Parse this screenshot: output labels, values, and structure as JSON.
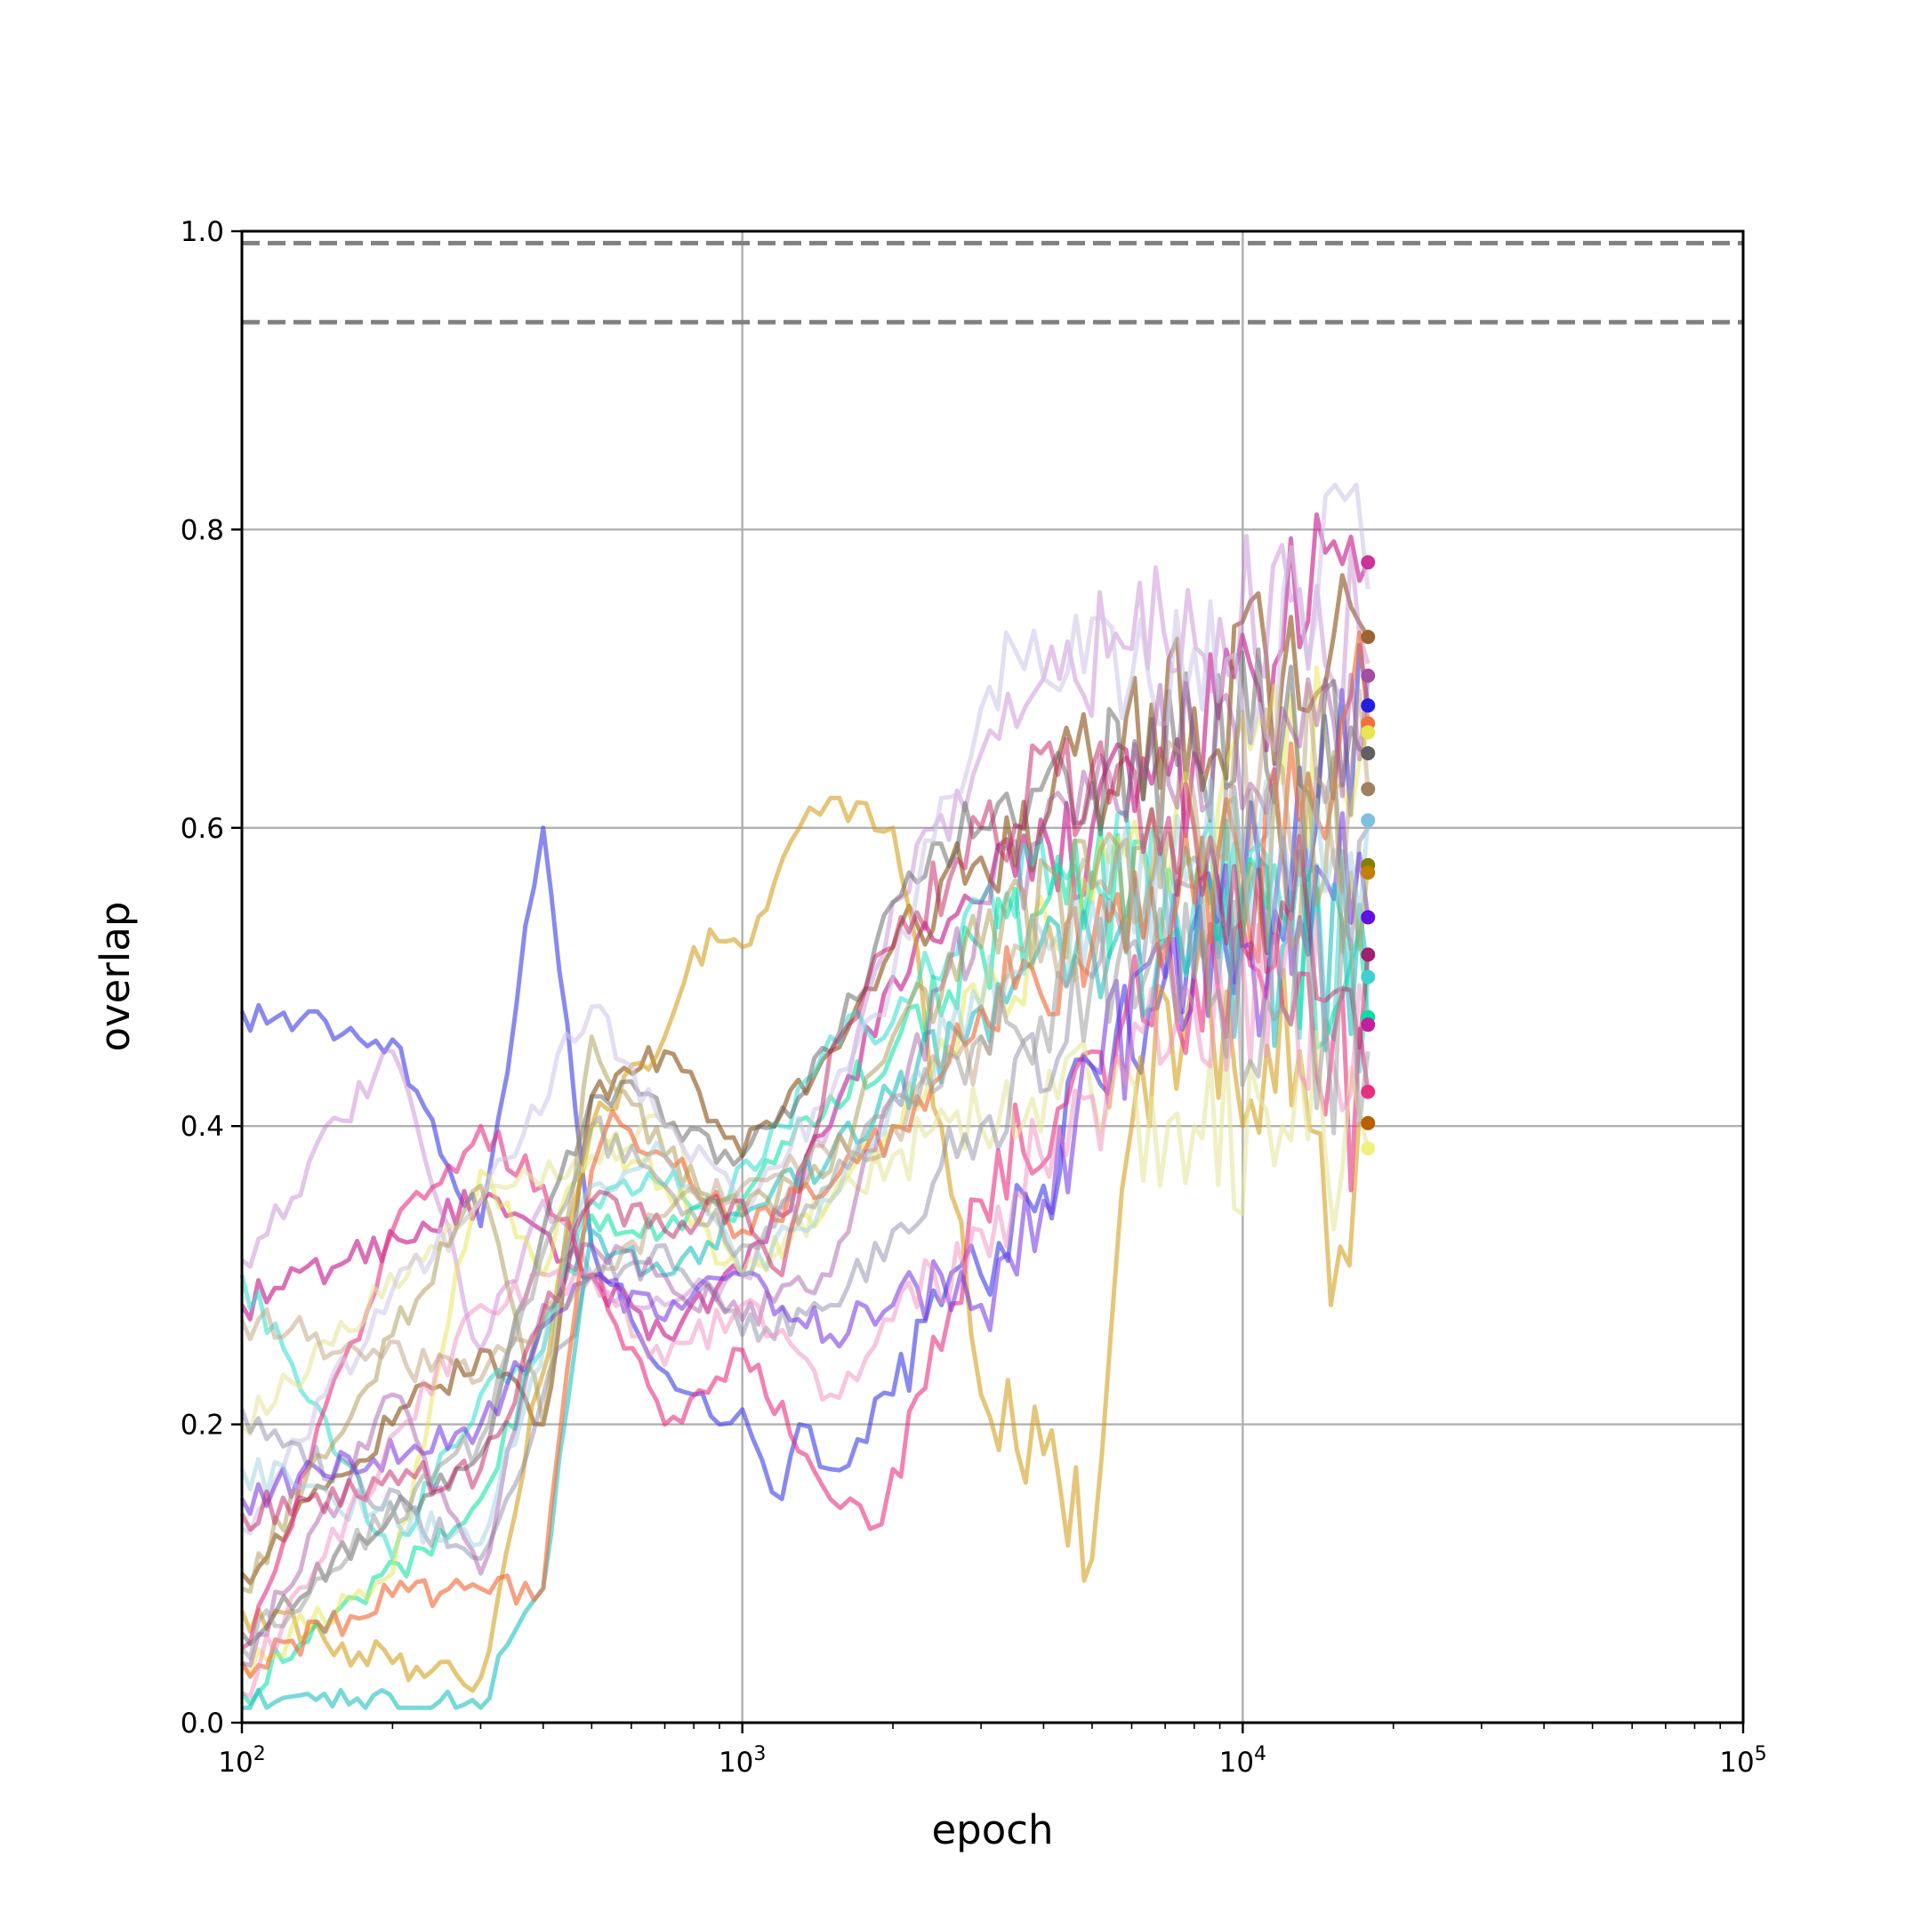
{
  "chart_data": {
    "type": "line",
    "title": "",
    "xlabel": "epoch",
    "ylabel": "overlap",
    "xscale": "log",
    "xlim": [
      100,
      100000
    ],
    "ylim": [
      0.0,
      1.0
    ],
    "grid": true,
    "legend": "none",
    "x_tick_labels": [
      {
        "value": 100,
        "base": "10",
        "exp": "2"
      },
      {
        "value": 1000,
        "base": "10",
        "exp": "3"
      },
      {
        "value": 10000,
        "base": "10",
        "exp": "4"
      },
      {
        "value": 100000,
        "base": "10",
        "exp": "5"
      }
    ],
    "y_tick_labels": [
      {
        "value": 0.0,
        "label": "0.0"
      },
      {
        "value": 0.2,
        "label": "0.2"
      },
      {
        "value": 0.4,
        "label": "0.4"
      },
      {
        "value": 0.6,
        "label": "0.6"
      },
      {
        "value": 0.8,
        "label": "0.8"
      },
      {
        "value": 1.0,
        "label": "1.0"
      }
    ],
    "reference_lines": [
      {
        "y": 0.992,
        "style": "dashed",
        "color": "#808080"
      },
      {
        "y": 0.939,
        "style": "dashed",
        "color": "#808080"
      }
    ],
    "series": [
      {
        "color": "#4a4ae6",
        "alpha": 0.65,
        "x": [
          100,
          200,
          300,
          400,
          500,
          600,
          800,
          900,
          1000,
          1200,
          1300,
          1500,
          1700,
          2000,
          2500,
          3000,
          4000,
          5000,
          7000,
          10000,
          14000,
          17800
        ],
        "y": [
          0.477,
          0.458,
          0.333,
          0.6,
          0.32,
          0.27,
          0.22,
          0.2,
          0.21,
          0.15,
          0.2,
          0.17,
          0.19,
          0.22,
          0.28,
          0.3,
          0.36,
          0.44,
          0.5,
          0.55,
          0.6,
          0.682
        ]
      },
      {
        "color": "#cc3399",
        "alpha": 0.7,
        "x": [
          100,
          300,
          500,
          700,
          1000,
          1500,
          2000,
          3000,
          5000,
          8000,
          12000,
          17800
        ],
        "y": [
          0.28,
          0.35,
          0.3,
          0.26,
          0.3,
          0.4,
          0.5,
          0.55,
          0.6,
          0.65,
          0.72,
          0.778
        ]
      },
      {
        "color": "#996633",
        "alpha": 0.7,
        "x": [
          100,
          200,
          300,
          400,
          500,
          700,
          1000,
          1500,
          2000,
          3000,
          5000,
          8000,
          12000,
          17800
        ],
        "y": [
          0.1,
          0.2,
          0.25,
          0.2,
          0.42,
          0.45,
          0.38,
          0.45,
          0.52,
          0.58,
          0.64,
          0.68,
          0.7,
          0.728
        ]
      },
      {
        "color": "#c080d0",
        "alpha": 0.45,
        "x": [
          100,
          200,
          300,
          400,
          500,
          700,
          1000,
          1500,
          2000,
          3000,
          4000,
          6000,
          9000,
          13000,
          17800
        ],
        "y": [
          0.31,
          0.45,
          0.25,
          0.35,
          0.3,
          0.28,
          0.3,
          0.4,
          0.55,
          0.65,
          0.7,
          0.72,
          0.74,
          0.76,
          0.71
        ]
      },
      {
        "color": "#d4a020",
        "alpha": 0.6,
        "x": [
          100,
          200,
          300,
          500,
          700,
          800,
          1000,
          1300,
          1500,
          2000,
          2500,
          3000,
          4000,
          5000,
          6000,
          8000,
          10000,
          13000,
          15000,
          17800
        ],
        "y": [
          0.075,
          0.04,
          0.03,
          0.4,
          0.46,
          0.52,
          0.52,
          0.6,
          0.62,
          0.6,
          0.4,
          0.22,
          0.18,
          0.11,
          0.4,
          0.5,
          0.4,
          0.45,
          0.28,
          0.402
        ]
      },
      {
        "color": "#40e0d0",
        "alpha": 0.6,
        "x": [
          100,
          200,
          300,
          400,
          500,
          700,
          900,
          1200,
          1500,
          2000,
          3000,
          5000,
          8000,
          12000,
          17800
        ],
        "y": [
          0.3,
          0.11,
          0.22,
          0.25,
          0.35,
          0.36,
          0.35,
          0.4,
          0.46,
          0.47,
          0.55,
          0.57,
          0.55,
          0.53,
          0.5
        ]
      },
      {
        "color": "#00e0a0",
        "alpha": 0.55,
        "x": [
          100,
          300,
          500,
          700,
          1000,
          1500,
          2000,
          3000,
          5000,
          8000,
          12000,
          17800
        ],
        "y": [
          0.02,
          0.15,
          0.34,
          0.33,
          0.35,
          0.42,
          0.45,
          0.52,
          0.56,
          0.56,
          0.54,
          0.473
        ]
      },
      {
        "color": "#e83080",
        "alpha": 0.6,
        "x": [
          100,
          200,
          300,
          400,
          500,
          700,
          1000,
          1500,
          1800,
          2000,
          2500,
          3000,
          5000,
          8000,
          12000,
          17800
        ],
        "y": [
          0.05,
          0.33,
          0.4,
          0.36,
          0.3,
          0.2,
          0.25,
          0.15,
          0.13,
          0.17,
          0.25,
          0.35,
          0.45,
          0.5,
          0.48,
          0.423
        ]
      },
      {
        "color": "#e6e650",
        "alpha": 0.5,
        "x": [
          100,
          200,
          300,
          400,
          500,
          700,
          1000,
          1500,
          2000,
          3000,
          5000,
          8000,
          12000,
          17800
        ],
        "y": [
          0.04,
          0.1,
          0.37,
          0.3,
          0.4,
          0.36,
          0.3,
          0.35,
          0.4,
          0.48,
          0.55,
          0.6,
          0.63,
          0.664
        ]
      },
      {
        "color": "#e6e6a0",
        "alpha": 0.6,
        "x": [
          100,
          300,
          500,
          700,
          1000,
          1500,
          2000,
          3000,
          5000,
          8000,
          12000,
          17800
        ],
        "y": [
          0.2,
          0.35,
          0.38,
          0.4,
          0.3,
          0.35,
          0.38,
          0.4,
          0.42,
          0.4,
          0.4,
          0.385
        ]
      },
      {
        "color": "#606060",
        "alpha": 0.5,
        "x": [
          100,
          200,
          300,
          400,
          500,
          600,
          700,
          1000,
          1500,
          2000,
          3000,
          5000,
          8000,
          12000,
          17800
        ],
        "y": [
          0.06,
          0.14,
          0.18,
          0.33,
          0.42,
          0.43,
          0.4,
          0.38,
          0.45,
          0.55,
          0.6,
          0.63,
          0.65,
          0.66,
          0.65
        ]
      },
      {
        "color": "#d0c8e8",
        "alpha": 0.6,
        "x": [
          100,
          200,
          300,
          500,
          700,
          1000,
          1500,
          2000,
          2500,
          3000,
          3500,
          4000,
          5000,
          6000,
          8000,
          10000,
          14000,
          16000,
          17800
        ],
        "y": [
          0.13,
          0.29,
          0.35,
          0.48,
          0.4,
          0.35,
          0.42,
          0.5,
          0.62,
          0.68,
          0.72,
          0.7,
          0.74,
          0.7,
          0.72,
          0.68,
          0.74,
          0.82,
          0.76
        ]
      },
      {
        "color": "#8080a0",
        "alpha": 0.45,
        "x": [
          100,
          300,
          500,
          700,
          1000,
          1500,
          2000,
          3000,
          5000,
          8000,
          12000,
          17800
        ],
        "y": [
          0.21,
          0.11,
          0.3,
          0.32,
          0.26,
          0.28,
          0.33,
          0.4,
          0.5,
          0.56,
          0.58,
          0.6
        ]
      },
      {
        "color": "#7030e0",
        "alpha": 0.55,
        "x": [
          100,
          300,
          500,
          700,
          1000,
          1500,
          2000,
          2500,
          3000,
          4000,
          5000,
          7000,
          10000,
          13000,
          17800
        ],
        "y": [
          0.15,
          0.2,
          0.3,
          0.27,
          0.3,
          0.26,
          0.28,
          0.3,
          0.28,
          0.35,
          0.44,
          0.5,
          0.52,
          0.54,
          0.54
        ]
      },
      {
        "color": "#20c0c0",
        "alpha": 0.6,
        "x": [
          100,
          300,
          400,
          500,
          700,
          1000,
          1500,
          2000,
          3000,
          5000,
          8000,
          12000,
          17800
        ],
        "y": [
          0.01,
          0.01,
          0.09,
          0.33,
          0.3,
          0.34,
          0.38,
          0.42,
          0.48,
          0.52,
          0.52,
          0.52,
          0.5
        ]
      },
      {
        "color": "#f07040",
        "alpha": 0.65,
        "x": [
          100,
          200,
          300,
          400,
          500,
          550,
          700,
          1000,
          1500,
          2000,
          3000,
          5000,
          8000,
          12000,
          17800
        ],
        "y": [
          0.04,
          0.085,
          0.09,
          0.09,
          0.37,
          0.41,
          0.38,
          0.33,
          0.36,
          0.4,
          0.48,
          0.52,
          0.55,
          0.58,
          0.67
        ]
      },
      {
        "color": "#a050a0",
        "alpha": 0.45,
        "x": [
          100,
          200,
          300,
          400,
          500,
          700,
          1000,
          1500,
          2000,
          3000,
          5000,
          8000,
          12000,
          17800
        ],
        "y": [
          0.04,
          0.22,
          0.1,
          0.28,
          0.32,
          0.3,
          0.27,
          0.3,
          0.42,
          0.55,
          0.62,
          0.66,
          0.68,
          0.7
        ]
      },
      {
        "color": "#b0a060",
        "alpha": 0.55,
        "x": [
          100,
          200,
          300,
          400,
          500,
          700,
          1000,
          1500,
          2000,
          3000,
          5000,
          8000,
          12000,
          17800
        ],
        "y": [
          0.09,
          0.26,
          0.36,
          0.2,
          0.46,
          0.38,
          0.34,
          0.37,
          0.46,
          0.52,
          0.56,
          0.58,
          0.58,
          0.575
        ]
      },
      {
        "color": "#a0d0e0",
        "alpha": 0.5,
        "x": [
          100,
          300,
          500,
          700,
          1000,
          1500,
          2000,
          3000,
          5000,
          8000,
          12000,
          17800
        ],
        "y": [
          0.17,
          0.12,
          0.36,
          0.38,
          0.3,
          0.35,
          0.42,
          0.48,
          0.55,
          0.58,
          0.6,
          0.605
        ]
      },
      {
        "color": "#c02060",
        "alpha": 0.5,
        "x": [
          100,
          300,
          500,
          700,
          1000,
          1200,
          1500,
          2000,
          3000,
          5000,
          8000,
          12000,
          17800
        ],
        "y": [
          0.14,
          0.17,
          0.35,
          0.33,
          0.35,
          0.3,
          0.45,
          0.52,
          0.6,
          0.64,
          0.6,
          0.55,
          0.515
        ]
      },
      {
        "color": "#f090c0",
        "alpha": 0.5,
        "x": [
          100,
          300,
          500,
          700,
          1000,
          1500,
          2000,
          3000,
          5000,
          8000,
          12000,
          17800
        ],
        "y": [
          0.02,
          0.28,
          0.3,
          0.24,
          0.28,
          0.22,
          0.27,
          0.33,
          0.42,
          0.48,
          0.5,
          0.47
        ]
      },
      {
        "color": "#c0a080",
        "alpha": 0.5,
        "x": [
          100,
          300,
          500,
          700,
          1000,
          1500,
          2000,
          3000,
          5000,
          8000,
          12000,
          17800
        ],
        "y": [
          0.27,
          0.23,
          0.3,
          0.34,
          0.36,
          0.38,
          0.4,
          0.46,
          0.56,
          0.62,
          0.64,
          0.626
        ]
      },
      {
        "color": "#a0a0a0",
        "alpha": 0.55,
        "x": [
          100,
          300,
          500,
          700,
          1000,
          1500,
          2000,
          3000,
          5000,
          8000,
          12000,
          17800
        ],
        "y": [
          0.05,
          0.19,
          0.4,
          0.36,
          0.32,
          0.36,
          0.42,
          0.46,
          0.5,
          0.5,
          0.48,
          0.45
        ]
      }
    ],
    "endpoint_markers": [
      {
        "y": 0.778,
        "color": "#cc3399"
      },
      {
        "y": 0.728,
        "color": "#996633"
      },
      {
        "y": 0.702,
        "color": "#a050a0"
      },
      {
        "y": 0.682,
        "color": "#2020e0"
      },
      {
        "y": 0.67,
        "color": "#f07040"
      },
      {
        "y": 0.664,
        "color": "#e6e650"
      },
      {
        "y": 0.65,
        "color": "#606060"
      },
      {
        "y": 0.626,
        "color": "#a08060"
      },
      {
        "y": 0.605,
        "color": "#80c0e0"
      },
      {
        "y": 0.575,
        "color": "#808000"
      },
      {
        "y": 0.57,
        "color": "#c08000"
      },
      {
        "y": 0.54,
        "color": "#6010e0"
      },
      {
        "y": 0.515,
        "color": "#a0206a"
      },
      {
        "y": 0.5,
        "color": "#40d0d0"
      },
      {
        "y": 0.473,
        "color": "#00e0a0"
      },
      {
        "y": 0.468,
        "color": "#c020a0"
      },
      {
        "y": 0.423,
        "color": "#e83080"
      },
      {
        "y": 0.402,
        "color": "#b86000"
      },
      {
        "y": 0.385,
        "color": "#f0f080"
      }
    ]
  }
}
